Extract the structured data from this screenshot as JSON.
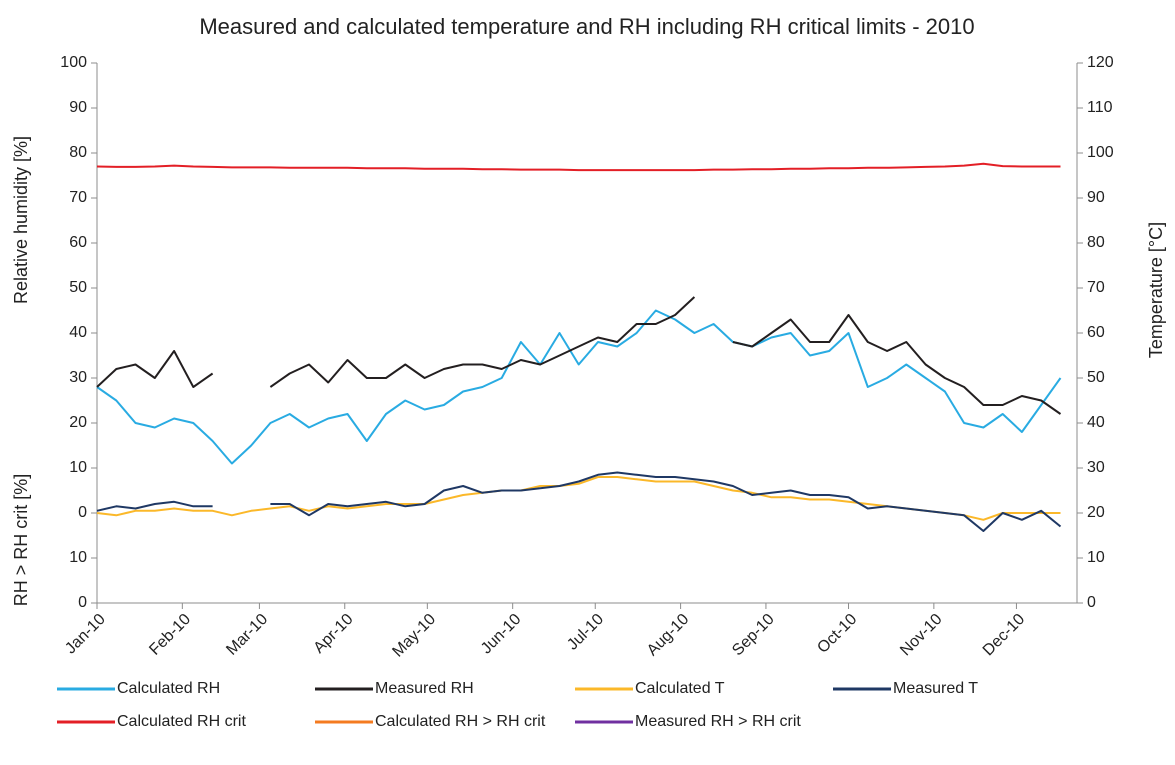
{
  "chart_data": {
    "type": "line",
    "title": "Measured and calculated temperature and RH including RH critical limits - 2010",
    "ylabel": "Relative humidity [%]",
    "ylabel_lower": "RH > RH crit [%]",
    "y2label": "Temperature [°C]",
    "x": [
      0,
      7,
      14,
      21,
      28,
      35,
      42,
      49,
      56,
      63,
      70,
      77,
      84,
      91,
      98,
      105,
      112,
      119,
      126,
      133,
      140,
      147,
      154,
      161,
      168,
      175,
      182,
      189,
      196,
      203,
      210,
      217,
      224,
      231,
      238,
      245,
      252,
      259,
      266,
      273,
      280,
      287,
      294,
      301,
      308,
      315,
      322,
      329,
      336,
      343,
      350
    ],
    "xlim": [
      0,
      356
    ],
    "xticks": [
      {
        "value": 0,
        "label": "Jan-10"
      },
      {
        "value": 31,
        "label": "Feb-10"
      },
      {
        "value": 59,
        "label": "Mar-10"
      },
      {
        "value": 90,
        "label": "Apr-10"
      },
      {
        "value": 120,
        "label": "May-10"
      },
      {
        "value": 151,
        "label": "Jun-10"
      },
      {
        "value": 181,
        "label": "Jul-10"
      },
      {
        "value": 212,
        "label": "Aug-10"
      },
      {
        "value": 243,
        "label": "Sep-10"
      },
      {
        "value": 273,
        "label": "Oct-10"
      },
      {
        "value": 304,
        "label": "Nov-10"
      },
      {
        "value": 334,
        "label": "Dec-10"
      }
    ],
    "ylim": [
      -20,
      100
    ],
    "yticks": [
      {
        "value": -20,
        "label": "0"
      },
      {
        "value": -10,
        "label": "10"
      },
      0,
      10,
      20,
      30,
      40,
      50,
      60,
      70,
      80,
      90,
      100
    ],
    "y2lim": [
      0,
      120
    ],
    "y2ticks": [
      0,
      10,
      20,
      30,
      40,
      50,
      60,
      70,
      80,
      90,
      100,
      110,
      120
    ],
    "grid": false,
    "legend": "bottom",
    "series": [
      {
        "name": "Calculated RH",
        "color": "#29abe2",
        "values": [
          28,
          25,
          20,
          19,
          21,
          20,
          16,
          11,
          15,
          20,
          22,
          19,
          21,
          22,
          16,
          22,
          25,
          23,
          24,
          27,
          28,
          30,
          38,
          33,
          40,
          33,
          38,
          37,
          40,
          45,
          43,
          40,
          42,
          38,
          37,
          39,
          40,
          35,
          36,
          40,
          28,
          30,
          33,
          30,
          27,
          20,
          19,
          22,
          18,
          24,
          30
        ]
      },
      {
        "name": "Measured RH",
        "color": "#231f20",
        "values": [
          28,
          32,
          33,
          30,
          36,
          28,
          31,
          null,
          null,
          28,
          31,
          33,
          29,
          34,
          30,
          30,
          33,
          30,
          32,
          33,
          33,
          32,
          34,
          33,
          35,
          37,
          39,
          38,
          42,
          42,
          44,
          48,
          null,
          38,
          37,
          40,
          43,
          38,
          38,
          44,
          38,
          36,
          38,
          33,
          30,
          28,
          24,
          24,
          26,
          25,
          22
        ]
      },
      {
        "name": "Calculated T",
        "color": "#fbb829",
        "axis": "y2",
        "values": [
          20,
          19.5,
          20.5,
          20.5,
          21,
          20.5,
          20.5,
          19.5,
          20.5,
          21,
          21.5,
          20.5,
          21.5,
          21,
          21.5,
          22,
          22,
          22,
          23,
          24,
          24.5,
          25,
          25,
          26,
          26,
          26.5,
          28,
          28,
          27.5,
          27,
          27,
          27,
          26,
          25,
          24.5,
          23.5,
          23.5,
          23,
          23,
          22.5,
          22,
          21.5,
          21,
          20.5,
          20,
          19.5,
          18.5,
          20,
          20,
          20,
          20
        ]
      },
      {
        "name": "Measured T",
        "color": "#1f3864",
        "axis": "y2",
        "values": [
          20.5,
          21.5,
          21,
          22,
          22.5,
          21.5,
          21.5,
          null,
          null,
          22,
          22,
          19.5,
          22,
          21.5,
          22,
          22.5,
          21.5,
          22,
          25,
          26,
          24.5,
          25,
          25,
          25.5,
          26,
          27,
          28.5,
          29,
          28.5,
          28,
          28,
          27.5,
          27,
          26,
          24,
          24.5,
          25,
          24,
          24,
          23.5,
          21,
          21.5,
          21,
          20.5,
          20,
          19.5,
          16,
          20,
          18.5,
          20.5,
          17
        ]
      },
      {
        "name": "Calculated RH crit",
        "color": "#e31f26",
        "values": [
          77,
          76.9,
          76.9,
          77,
          77.2,
          77,
          76.9,
          76.8,
          76.8,
          76.8,
          76.7,
          76.7,
          76.7,
          76.7,
          76.6,
          76.6,
          76.6,
          76.5,
          76.5,
          76.5,
          76.4,
          76.4,
          76.3,
          76.3,
          76.3,
          76.2,
          76.2,
          76.2,
          76.2,
          76.2,
          76.2,
          76.2,
          76.3,
          76.3,
          76.4,
          76.4,
          76.5,
          76.5,
          76.6,
          76.6,
          76.7,
          76.7,
          76.8,
          76.9,
          77,
          77.2,
          77.6,
          77.1,
          77,
          77,
          77
        ]
      },
      {
        "name": "Calculated RH > RH crit",
        "color": "#f47b20",
        "values": [
          null,
          null,
          null,
          null,
          null,
          null,
          null,
          null,
          null,
          null,
          null,
          null,
          null,
          null,
          null,
          null,
          null,
          null,
          null,
          null,
          null,
          null,
          null,
          null,
          null,
          null,
          null,
          null,
          null,
          null,
          null,
          null,
          null,
          null,
          null,
          null,
          null,
          null,
          null,
          null,
          null,
          null,
          null,
          null,
          null,
          null,
          null,
          null,
          null,
          null,
          null
        ]
      },
      {
        "name": "Measured RH > RH crit",
        "color": "#7030a0",
        "values": [
          null,
          null,
          null,
          null,
          null,
          null,
          null,
          null,
          null,
          null,
          null,
          null,
          null,
          null,
          null,
          null,
          null,
          null,
          null,
          null,
          null,
          null,
          null,
          null,
          null,
          null,
          null,
          null,
          null,
          null,
          null,
          null,
          null,
          null,
          null,
          null,
          null,
          null,
          null,
          null,
          null,
          null,
          null,
          null,
          null,
          null,
          null,
          null,
          null,
          null,
          null
        ]
      }
    ]
  }
}
